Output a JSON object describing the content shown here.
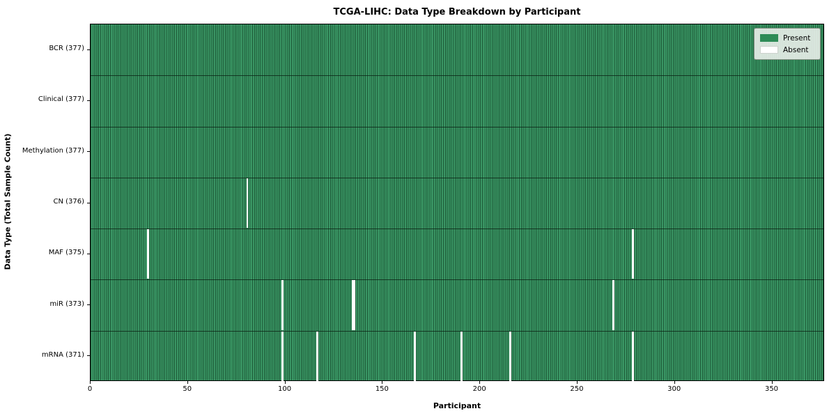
{
  "chart_data": {
    "type": "heatmap",
    "title": "TCGA-LIHC: Data Type Breakdown by Participant",
    "xlabel": "Participant",
    "ylabel": "Data Type (Total Sample Count)",
    "x_min": 0,
    "x_max": 377,
    "n_participants": 377,
    "x_ticks": [
      0,
      50,
      100,
      150,
      200,
      250,
      300,
      350
    ],
    "rows": [
      {
        "label": "BCR",
        "total": 377,
        "absent_participants": []
      },
      {
        "label": "Clinical",
        "total": 377,
        "absent_participants": []
      },
      {
        "label": "Methylation",
        "total": 377,
        "absent_participants": []
      },
      {
        "label": "CN",
        "total": 376,
        "absent_participants": [
          80
        ]
      },
      {
        "label": "MAF",
        "total": 375,
        "absent_participants": [
          29,
          278
        ]
      },
      {
        "label": "miR",
        "total": 373,
        "absent_participants": [
          98,
          134,
          135,
          268
        ]
      },
      {
        "label": "mRNA",
        "total": 371,
        "absent_participants": [
          98,
          116,
          166,
          190,
          215,
          278
        ]
      }
    ],
    "legend": [
      {
        "label": "Present",
        "color": "#2e8b57"
      },
      {
        "label": "Absent",
        "color": "#ffffff"
      }
    ],
    "colors": {
      "present_fill": "#3a9765",
      "cell_edge": "#1d5937",
      "absent_fill": "#ffffff",
      "axes_border": "#000000",
      "legend_background": "#eaeeea"
    },
    "grid": "cell-edges-only",
    "legend_position": "upper-right"
  }
}
